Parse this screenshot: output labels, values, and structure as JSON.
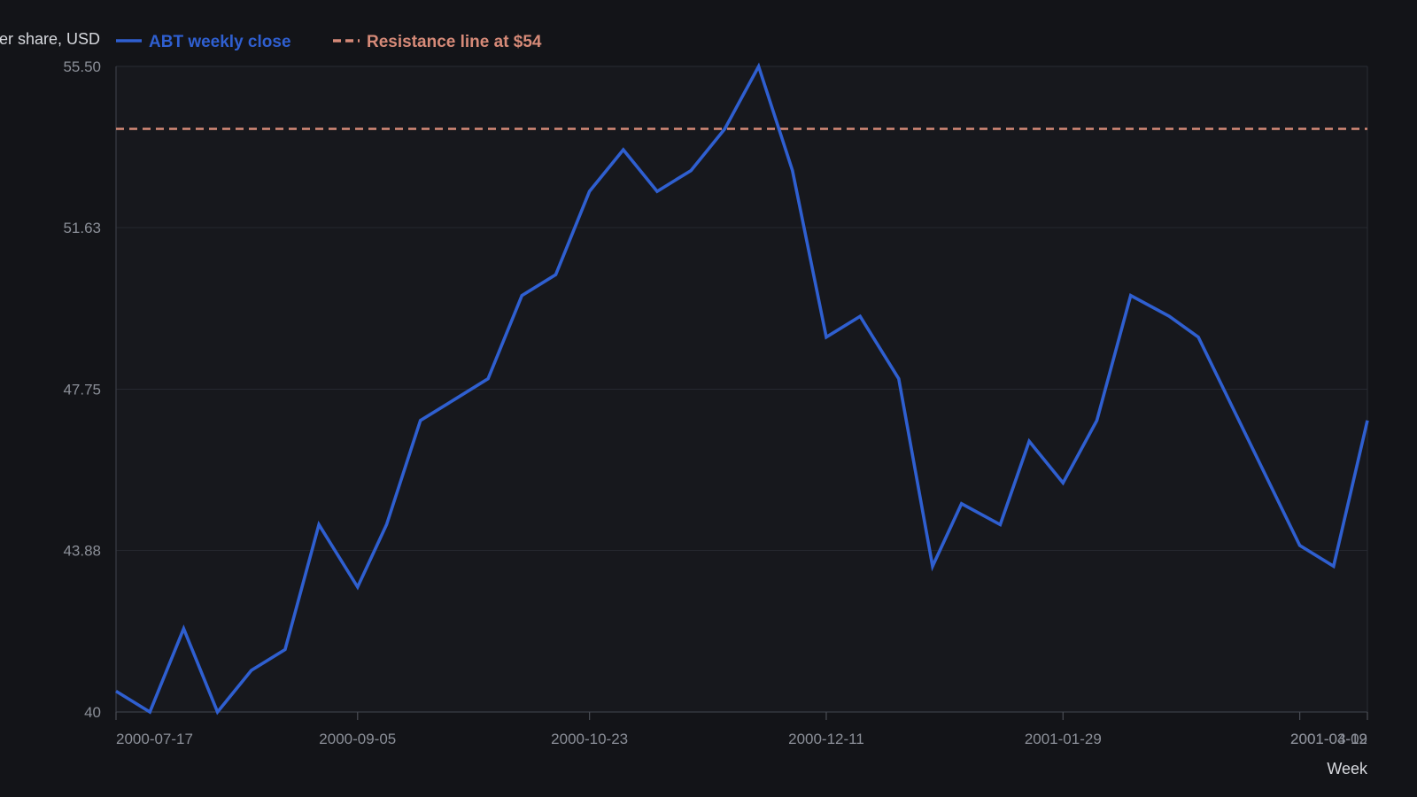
{
  "chart_data": {
    "type": "line",
    "ylabel": "Price per share, USD",
    "xlabel": "Week",
    "ylim": [
      40,
      55.5
    ],
    "y_ticks": [
      "40",
      "43.88",
      "47.75",
      "51.63",
      "55.50"
    ],
    "x_ticks": [
      "2000-07-17",
      "2000-09-05",
      "2000-10-23",
      "2000-12-11",
      "2001-01-29",
      "2001-03-19",
      "2001-04-02"
    ],
    "grid": "horizontal",
    "legend_position": "top-left",
    "series": [
      {
        "name": "ABT weekly close",
        "color": "#2f5fd0",
        "style": "solid",
        "x": [
          "2000-07-17",
          "2000-07-24",
          "2000-07-31",
          "2000-08-07",
          "2000-08-14",
          "2000-08-21",
          "2000-08-28",
          "2000-09-05",
          "2000-09-11",
          "2000-09-18",
          "2000-09-25",
          "2000-10-02",
          "2000-10-09",
          "2000-10-16",
          "2000-10-23",
          "2000-10-30",
          "2000-11-06",
          "2000-11-13",
          "2000-11-20",
          "2000-11-27",
          "2000-12-04",
          "2000-12-11",
          "2000-12-18",
          "2000-12-26",
          "2001-01-02",
          "2001-01-08",
          "2001-01-16",
          "2001-01-22",
          "2001-01-29",
          "2001-02-05",
          "2001-02-12",
          "2001-02-20",
          "2001-02-26",
          "2001-03-19",
          "2001-03-26",
          "2001-04-02"
        ],
        "values": [
          40.5,
          40.0,
          42.0,
          40.0,
          41.0,
          41.5,
          44.5,
          43.0,
          44.5,
          47.0,
          47.5,
          48.0,
          50.0,
          50.5,
          52.5,
          53.5,
          52.5,
          53.0,
          54.0,
          55.5,
          53.0,
          49.0,
          49.5,
          48.0,
          43.5,
          45.0,
          44.5,
          46.5,
          45.5,
          47.0,
          50.0,
          49.5,
          49.0,
          44.0,
          43.5,
          47.0
        ]
      },
      {
        "name": "Resistance line at $54",
        "color": "#d68a78",
        "style": "dashed",
        "x": [
          "2000-07-17",
          "2001-04-02"
        ],
        "values": [
          54,
          54
        ]
      }
    ]
  }
}
